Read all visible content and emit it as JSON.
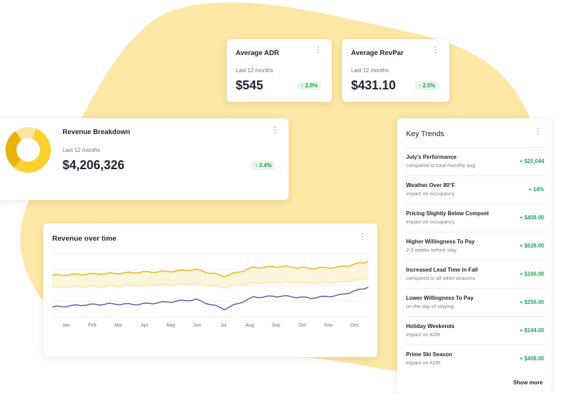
{
  "colors": {
    "blob": "#fce7a4",
    "accent_gold": "#e9b311",
    "accent_light_gold": "#fde7a1",
    "accent_purple": "#6b53b0",
    "positive": "#22a55b"
  },
  "average_adr": {
    "title": "Average ADR",
    "period": "Last 12 months",
    "value": "$545",
    "change": "↑ 2.0%"
  },
  "average_revpar": {
    "title": "Average RevPar",
    "period": "Last 12 months",
    "value": "$431.10",
    "change": "↑ 2.0%"
  },
  "revenue_breakdown": {
    "title": "Revenue Breakdown",
    "period": "Last 12 months",
    "value": "$4,206,326",
    "change": "↑ 3.4%",
    "donut_segments": [
      {
        "share": 0.55,
        "color": "#fdd12e"
      },
      {
        "share": 0.3,
        "color": "#ebb10d"
      },
      {
        "share": 0.15,
        "color": "#fbe7a0"
      }
    ]
  },
  "revenue_over_time": {
    "title": "Revenue over time",
    "chart_data": {
      "type": "line",
      "categories": [
        "Jan",
        "Feb",
        "Mar",
        "Apr",
        "May",
        "Jun",
        "Jul",
        "Aug",
        "Sep",
        "Oct",
        "Nov",
        "Dec"
      ],
      "series": [
        {
          "values": [
            0.85,
            0.88,
            0.9,
            0.93,
            0.95,
            1.0,
            0.83,
            1.05,
            1.08,
            1.03,
            1.06,
            1.2
          ],
          "color": "#e9b311"
        },
        {
          "values": [
            0.55,
            0.57,
            0.58,
            0.6,
            0.62,
            0.64,
            0.55,
            0.66,
            0.68,
            0.66,
            0.68,
            0.78
          ],
          "color": "#fde7a1"
        },
        {
          "values": [
            0.05,
            0.1,
            0.13,
            0.12,
            0.18,
            0.24,
            0.0,
            0.3,
            0.33,
            0.28,
            0.35,
            0.55
          ],
          "color": "#6b53b0"
        }
      ],
      "ylim": [
        -0.2,
        1.4
      ],
      "grid": true,
      "legend": "none"
    }
  },
  "key_trends": {
    "title": "Key Trends",
    "items": [
      {
        "title": "July's Performance",
        "subtitle": "compared to total monthly avg",
        "value": "+ $20,044"
      },
      {
        "title": "Weather Over 80°F",
        "subtitle": "impact on occupancy",
        "value": "+ 14%"
      },
      {
        "title": "Pricing Slightly Below Compset",
        "subtitle": "impact on occupancy",
        "value": "+ $408.00"
      },
      {
        "title": "Higher Willingness To Pay",
        "subtitle": "2-3 weeks before stay",
        "value": "+ $628.00"
      },
      {
        "title": "Increased Lead Time In Fall",
        "subtitle": "compared to all other seasons",
        "value": "+ $166.00"
      },
      {
        "title": "Lower Willingness To Pay",
        "subtitle": "on the day of staying",
        "value": "+ $250.00"
      },
      {
        "title": "Holiday Weekends",
        "subtitle": "impact on ADR",
        "value": "+ $144.00"
      },
      {
        "title": "Prime Ski Season",
        "subtitle": "impact on ADR",
        "value": "+ $408.00"
      }
    ],
    "show_more": "Show more"
  },
  "icons": {
    "menu": "kebab-menu-icon"
  }
}
